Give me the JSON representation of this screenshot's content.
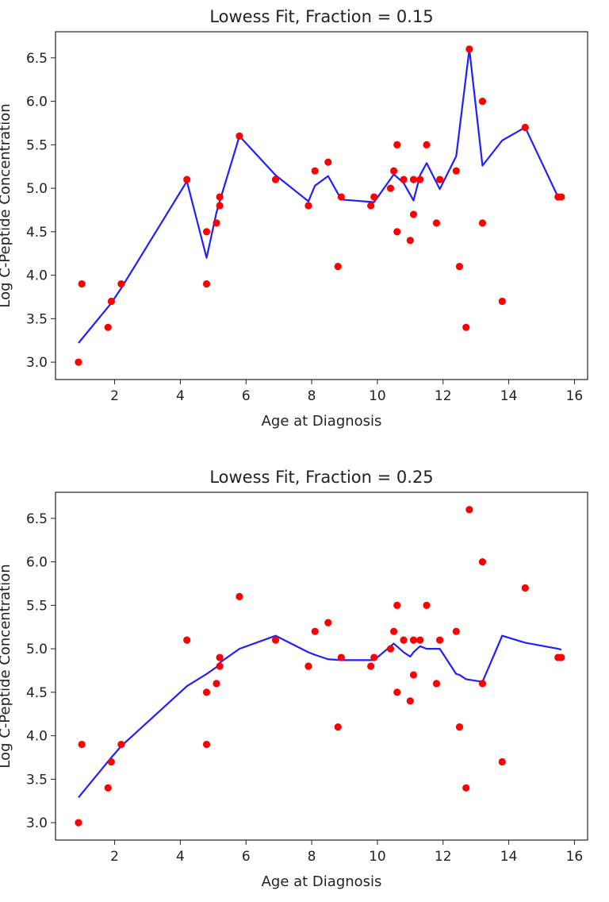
{
  "chart_data": [
    {
      "type": "scatter",
      "title": "Lowess Fit, Fraction = 0.15",
      "xlabel": "Age at Diagnosis",
      "ylabel": "Log C-Peptide Concentration",
      "xlim": [
        0.2,
        16.4
      ],
      "ylim": [
        2.8,
        6.8
      ],
      "xticks": [
        2,
        4,
        6,
        8,
        10,
        12,
        14,
        16
      ],
      "yticks": [
        3.0,
        3.5,
        4.0,
        4.5,
        5.0,
        5.5,
        6.0,
        6.5
      ],
      "grid": false,
      "colors": {
        "points": "#ff0000",
        "fit": "#1f1fff",
        "axes": "#222222"
      },
      "series": [
        {
          "kind": "points",
          "x": [
            0.9,
            1.0,
            1.8,
            1.9,
            2.2,
            4.2,
            4.8,
            4.8,
            5.1,
            5.2,
            5.2,
            5.8,
            6.9,
            7.9,
            8.1,
            8.5,
            8.8,
            8.9,
            9.8,
            9.9,
            10.4,
            10.5,
            10.6,
            10.6,
            10.8,
            11.0,
            11.1,
            11.1,
            11.3,
            11.5,
            11.8,
            11.9,
            12.4,
            12.5,
            12.7,
            12.8,
            13.2,
            13.2,
            13.8,
            14.5,
            15.5,
            15.6
          ],
          "y": [
            3.0,
            3.9,
            3.4,
            3.7,
            3.9,
            5.1,
            4.5,
            3.9,
            4.6,
            4.8,
            4.9,
            5.6,
            5.1,
            4.8,
            5.2,
            5.3,
            4.1,
            4.9,
            4.8,
            4.9,
            5.0,
            5.2,
            5.5,
            4.5,
            5.1,
            4.4,
            5.1,
            4.7,
            5.1,
            5.5,
            4.6,
            5.1,
            5.2,
            4.1,
            3.4,
            6.6,
            6.0,
            4.6,
            3.7,
            5.7,
            4.9,
            4.9
          ]
        },
        {
          "kind": "line",
          "x": [
            0.9,
            1.9,
            2.2,
            4.2,
            4.8,
            5.1,
            5.2,
            5.8,
            6.9,
            7.9,
            8.1,
            8.5,
            8.9,
            9.9,
            10.5,
            10.8,
            11.1,
            11.3,
            11.5,
            11.9,
            12.4,
            12.8,
            13.2,
            13.8,
            14.5,
            15.5,
            15.6
          ],
          "y": [
            3.22,
            3.68,
            3.85,
            5.08,
            4.2,
            4.72,
            4.85,
            5.6,
            5.15,
            4.85,
            5.03,
            5.14,
            4.87,
            4.84,
            5.16,
            5.06,
            4.86,
            5.15,
            5.29,
            4.99,
            5.37,
            6.6,
            5.26,
            5.55,
            5.7,
            4.9,
            4.9
          ]
        }
      ]
    },
    {
      "type": "scatter",
      "title": "Lowess Fit, Fraction = 0.25",
      "xlabel": "Age at Diagnosis",
      "ylabel": "Log C-Peptide Concentration",
      "xlim": [
        0.2,
        16.4
      ],
      "ylim": [
        2.8,
        6.8
      ],
      "xticks": [
        2,
        4,
        6,
        8,
        10,
        12,
        14,
        16
      ],
      "yticks": [
        3.0,
        3.5,
        4.0,
        4.5,
        5.0,
        5.5,
        6.0,
        6.5
      ],
      "grid": false,
      "colors": {
        "points": "#ff0000",
        "fit": "#1f1fff",
        "axes": "#222222"
      },
      "series": [
        {
          "kind": "points",
          "x": [
            0.9,
            1.0,
            1.8,
            1.9,
            2.2,
            4.2,
            4.8,
            4.8,
            5.1,
            5.2,
            5.2,
            5.8,
            6.9,
            7.9,
            8.1,
            8.5,
            8.8,
            8.9,
            9.8,
            9.9,
            10.4,
            10.5,
            10.6,
            10.6,
            10.8,
            11.0,
            11.1,
            11.1,
            11.3,
            11.5,
            11.8,
            11.9,
            12.4,
            12.5,
            12.7,
            12.8,
            13.2,
            13.2,
            13.8,
            14.5,
            15.5,
            15.6
          ],
          "y": [
            3.0,
            3.9,
            3.4,
            3.7,
            3.9,
            5.1,
            4.5,
            3.9,
            4.6,
            4.8,
            4.9,
            5.6,
            5.1,
            4.8,
            5.2,
            5.3,
            4.1,
            4.9,
            4.8,
            4.9,
            5.0,
            5.2,
            5.5,
            4.5,
            5.1,
            4.4,
            5.1,
            4.7,
            5.1,
            5.5,
            4.6,
            5.1,
            5.2,
            4.1,
            3.4,
            6.6,
            6.0,
            4.6,
            3.7,
            5.7,
            4.9,
            4.9
          ]
        },
        {
          "kind": "line",
          "x": [
            0.9,
            1.9,
            2.2,
            4.2,
            4.8,
            5.1,
            5.2,
            5.8,
            6.9,
            7.9,
            8.1,
            8.5,
            8.9,
            9.9,
            10.5,
            10.8,
            11.0,
            11.1,
            11.3,
            11.5,
            11.9,
            12.4,
            12.5,
            12.7,
            13.2,
            13.8,
            14.5,
            15.5,
            15.6
          ],
          "y": [
            3.29,
            3.75,
            3.88,
            4.57,
            4.71,
            4.79,
            4.84,
            5.0,
            5.15,
            4.96,
            4.93,
            4.88,
            4.87,
            4.87,
            5.06,
            4.96,
            4.91,
            4.96,
            5.03,
            5.0,
            5.0,
            4.71,
            4.7,
            4.65,
            4.62,
            5.15,
            5.07,
            5.0,
            4.99
          ]
        }
      ]
    }
  ]
}
